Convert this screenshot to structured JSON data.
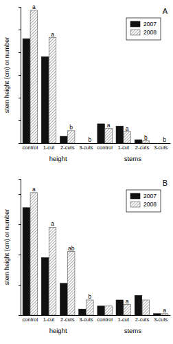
{
  "chart_data": [
    {
      "type": "bar",
      "title": "A",
      "y_label": "stem height (cm) or number",
      "categories": [
        "control",
        "1-cut",
        "2-cuts",
        "3-cuts",
        "control",
        "1-cut",
        "2-cuts",
        "3-cuts"
      ],
      "groups": [
        "height",
        "stems"
      ],
      "series": [
        {
          "name": "2007",
          "color": "#111111",
          "values": [
            92,
            76,
            6,
            0,
            17,
            15,
            3,
            0
          ]
        },
        {
          "name": "2008",
          "color": "#555555",
          "line_style": "hatched",
          "values": [
            117,
            93,
            11,
            0,
            13,
            10,
            2,
            0
          ],
          "letters": [
            "a",
            "a",
            "b",
            "b",
            "a",
            "a",
            "b",
            "b"
          ]
        }
      ],
      "ylim": [
        0,
        120
      ],
      "yticks": [
        0,
        20,
        40,
        60,
        80,
        100,
        120
      ],
      "tick_labels": "x",
      "legend": "upper right",
      "grid": false
    },
    {
      "type": "bar",
      "title": "B",
      "y_label": "stem height (cm) or number",
      "categories": [
        "control",
        "1-cut",
        "2-cuts",
        "3-cuts",
        "control",
        "1-cut",
        "2-cuts",
        "3-cuts"
      ],
      "groups": [
        "height",
        "stems"
      ],
      "series": [
        {
          "name": "2007",
          "color": "#111111",
          "values": [
            71,
            38,
            21,
            4,
            6,
            10,
            13,
            1
          ]
        },
        {
          "name": "2008",
          "color": "#555555",
          "line_style": "hatched",
          "values": [
            81,
            58,
            42,
            10,
            6,
            7,
            10,
            1
          ],
          "letters": [
            "a",
            "a",
            "ab",
            "b",
            null,
            "a",
            null,
            "a"
          ]
        }
      ],
      "ylim": [
        0,
        90
      ],
      "yticks": [
        0,
        20,
        40,
        60,
        80
      ],
      "tick_labels": "x",
      "legend": "upper right",
      "grid": false
    }
  ]
}
